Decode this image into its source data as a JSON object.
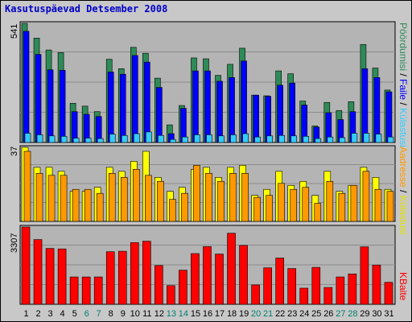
{
  "title": "Kasutuspäevad Detsember 2008",
  "colors": {
    "background": "#c8c8c8",
    "plot_background": "#b4b4b4",
    "pages": "#2e8b57",
    "hits": "#0000ff",
    "files": "#33ccff",
    "visits": "#ffff00",
    "sites": "#ff9900",
    "kbytes": "#ff0000",
    "weekend_label": "#00806e",
    "title": "#0000cc"
  },
  "chart_data": [
    {
      "type": "bar",
      "panel": "top",
      "ymax_label": "541",
      "ylim": [
        0,
        541
      ],
      "categories": [
        "1",
        "2",
        "3",
        "4",
        "5",
        "6",
        "7",
        "8",
        "9",
        "10",
        "11",
        "12",
        "13",
        "14",
        "15",
        "16",
        "17",
        "18",
        "19",
        "20",
        "21",
        "22",
        "23",
        "24",
        "25",
        "26",
        "27",
        "28",
        "29",
        "30",
        "31"
      ],
      "weekend_days": [
        "6",
        "7",
        "13",
        "14",
        "20",
        "21",
        "27",
        "28"
      ],
      "legend": [
        {
          "label": "Pöördumisi",
          "color": "#2e8b57"
        },
        {
          "label": "Faile",
          "color": "#0000ff"
        },
        {
          "label": "Külastusi",
          "color": "#33ccff"
        }
      ],
      "series": [
        {
          "name": "Pöördumisi",
          "values": [
            541,
            474,
            420,
            408,
            178,
            165,
            140,
            378,
            335,
            432,
            405,
            292,
            80,
            168,
            384,
            380,
            305,
            355,
            428,
            215,
            212,
            325,
            312,
            188,
            75,
            182,
            145,
            185,
            445,
            338,
            238
          ]
        },
        {
          "name": "Faile",
          "values": [
            505,
            400,
            330,
            328,
            140,
            128,
            118,
            320,
            310,
            395,
            365,
            250,
            40,
            155,
            325,
            325,
            278,
            295,
            370,
            215,
            210,
            260,
            270,
            170,
            70,
            135,
            104,
            140,
            335,
            295,
            230
          ]
        },
        {
          "name": "Külastusi",
          "values": [
            42,
            35,
            30,
            28,
            20,
            20,
            18,
            38,
            32,
            40,
            48,
            32,
            14,
            25,
            35,
            35,
            30,
            35,
            40,
            25,
            30,
            32,
            30,
            28,
            18,
            25,
            22,
            42,
            42,
            38,
            25
          ]
        }
      ]
    },
    {
      "type": "bar",
      "panel": "middle",
      "ymax_label": "37",
      "ylim": [
        0,
        37
      ],
      "categories": [
        "1",
        "2",
        "3",
        "4",
        "5",
        "6",
        "7",
        "8",
        "9",
        "10",
        "11",
        "12",
        "13",
        "14",
        "15",
        "16",
        "17",
        "18",
        "19",
        "20",
        "21",
        "22",
        "23",
        "24",
        "25",
        "26",
        "27",
        "28",
        "29",
        "30",
        "31"
      ],
      "legend": [
        {
          "label": "Külastusi",
          "color": "#ffff00"
        },
        {
          "label": "Aadresse",
          "color": "#ff9900"
        }
      ],
      "series": [
        {
          "name": "Külastusi",
          "values": [
            37,
            27,
            27,
            25,
            15,
            15,
            17,
            27,
            25,
            30,
            35,
            22,
            15,
            17,
            26,
            27,
            22,
            27,
            28,
            13,
            16,
            25,
            18,
            20,
            13,
            25,
            15,
            18,
            27,
            22,
            16
          ]
        },
        {
          "name": "Aadresse",
          "values": [
            35,
            24,
            23,
            23,
            16,
            16,
            14,
            24,
            22,
            26,
            23,
            20,
            11,
            14,
            28,
            24,
            20,
            24,
            24,
            12,
            13,
            19,
            16,
            17,
            9,
            20,
            14,
            18,
            25,
            16,
            15
          ]
        }
      ]
    },
    {
      "type": "bar",
      "panel": "bottom",
      "ymax_label": "3307",
      "ylim": [
        0,
        3307
      ],
      "categories": [
        "1",
        "2",
        "3",
        "4",
        "5",
        "6",
        "7",
        "8",
        "9",
        "10",
        "11",
        "12",
        "13",
        "14",
        "15",
        "16",
        "17",
        "18",
        "19",
        "20",
        "21",
        "22",
        "23",
        "24",
        "25",
        "26",
        "27",
        "28",
        "29",
        "30",
        "31"
      ],
      "legend": [
        {
          "label": "KBaite",
          "color": "#ff0000"
        }
      ],
      "series": [
        {
          "name": "KBaite",
          "values": [
            3307,
            2770,
            2390,
            2370,
            1170,
            1170,
            1170,
            2250,
            2270,
            2640,
            2700,
            1660,
            800,
            1460,
            2170,
            2470,
            2150,
            3040,
            2520,
            830,
            1560,
            1980,
            1530,
            690,
            1580,
            720,
            1170,
            1300,
            2460,
            1680,
            940
          ]
        }
      ]
    }
  ]
}
